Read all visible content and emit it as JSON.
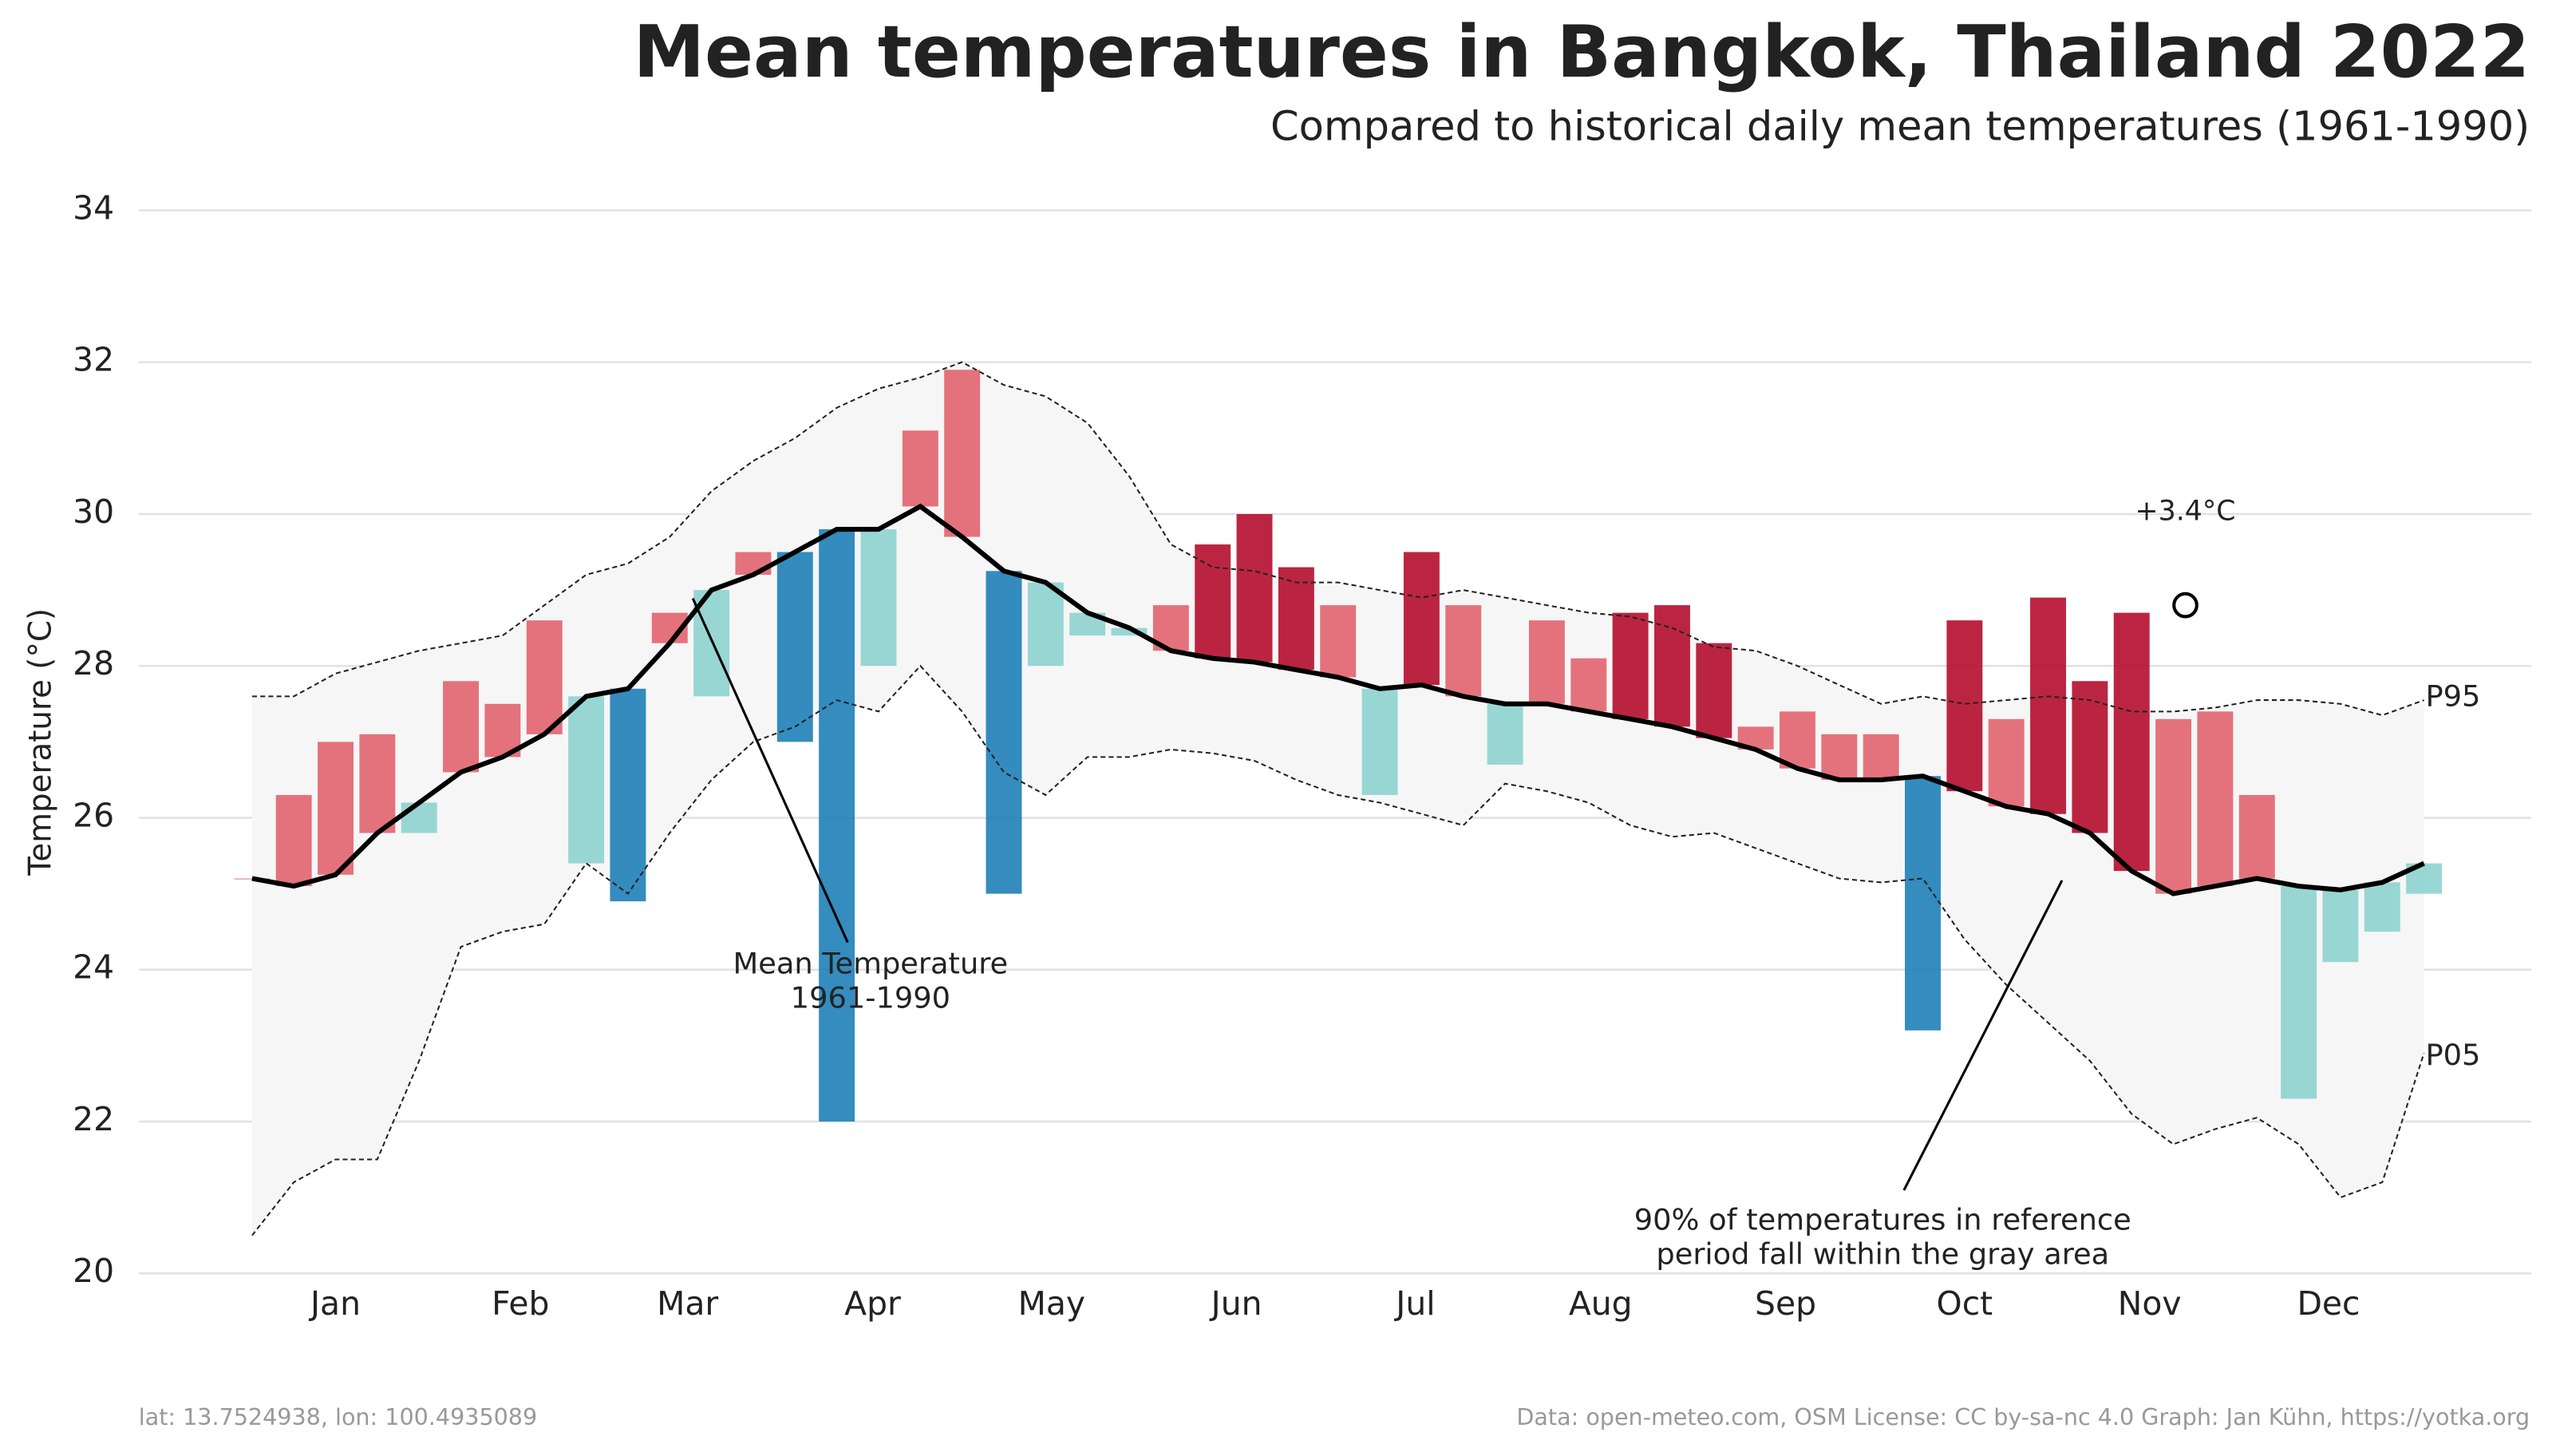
{
  "chart_data": {
    "type": "temperature-band",
    "title": "Mean temperatures in Bangkok, Thailand 2022",
    "subtitle": "Compared to historical daily mean temperatures (1961-1990)",
    "y_label": "Temperature (°C)",
    "footer_left": "lat: 13.7524938, lon: 100.4935089",
    "footer_right": "Data: open-meteo.com, OSM  License: CC by-sa-nc 4.0  Graph: Jan Kühn, https://yotka.org",
    "x": [
      1,
      8,
      15,
      22,
      29,
      36,
      43,
      50,
      57,
      64,
      71,
      78,
      85,
      92,
      99,
      106,
      113,
      120,
      127,
      134,
      141,
      148,
      155,
      162,
      169,
      176,
      183,
      190,
      197,
      204,
      211,
      218,
      225,
      232,
      239,
      246,
      253,
      260,
      267,
      274,
      281,
      288,
      295,
      302,
      309,
      316,
      323,
      330,
      337,
      344,
      351,
      358,
      365
    ],
    "mean": [
      25.2,
      25.1,
      25.25,
      25.8,
      26.2,
      26.6,
      26.8,
      27.1,
      27.6,
      27.7,
      28.3,
      29.0,
      29.2,
      29.5,
      29.8,
      29.8,
      30.1,
      29.7,
      29.25,
      29.1,
      28.7,
      28.5,
      28.2,
      28.1,
      28.05,
      27.95,
      27.85,
      27.7,
      27.75,
      27.6,
      27.5,
      27.5,
      27.4,
      27.3,
      27.2,
      27.05,
      26.9,
      26.65,
      26.5,
      26.5,
      26.55,
      26.35,
      26.15,
      26.05,
      25.8,
      25.3,
      25.0,
      25.1,
      25.2,
      25.1,
      25.05,
      25.15,
      25.4
    ],
    "p95": [
      27.6,
      27.6,
      27.9,
      28.05,
      28.2,
      28.3,
      28.4,
      28.8,
      29.2,
      29.35,
      29.7,
      30.3,
      30.7,
      31.0,
      31.4,
      31.65,
      31.8,
      32.0,
      31.7,
      31.55,
      31.2,
      30.5,
      29.6,
      29.3,
      29.25,
      29.1,
      29.1,
      29.0,
      28.9,
      29.0,
      28.9,
      28.8,
      28.7,
      28.65,
      28.5,
      28.25,
      28.2,
      28.0,
      27.75,
      27.5,
      27.6,
      27.5,
      27.55,
      27.6,
      27.55,
      27.4,
      27.4,
      27.45,
      27.55,
      27.55,
      27.5,
      27.35,
      27.55
    ],
    "p05": [
      20.5,
      21.2,
      21.5,
      21.5,
      22.8,
      24.3,
      24.5,
      24.6,
      25.4,
      25.0,
      25.8,
      26.5,
      27.0,
      27.2,
      27.55,
      27.4,
      28.0,
      27.4,
      26.6,
      26.3,
      26.8,
      26.8,
      26.9,
      26.85,
      26.75,
      26.5,
      26.3,
      26.2,
      26.05,
      25.9,
      26.45,
      26.35,
      26.2,
      25.9,
      25.75,
      25.8,
      25.6,
      25.4,
      25.2,
      25.15,
      25.2,
      24.4,
      23.8,
      23.3,
      22.8,
      22.1,
      21.7,
      21.9,
      22.05,
      21.7,
      21.0,
      21.2,
      22.9
    ],
    "observed": [
      25.2,
      26.3,
      27.0,
      27.1,
      25.8,
      27.8,
      27.5,
      28.6,
      25.4,
      24.9,
      28.7,
      27.6,
      29.5,
      27.0,
      22.0,
      28.0,
      31.1,
      31.9,
      25.0,
      28.0,
      28.4,
      28.4,
      28.8,
      29.6,
      30.0,
      29.3,
      28.8,
      26.3,
      29.5,
      28.8,
      26.7,
      28.6,
      28.1,
      28.7,
      28.8,
      28.3,
      27.2,
      27.4,
      27.1,
      27.1,
      23.2,
      28.6,
      27.3,
      28.9,
      27.8,
      28.7,
      27.3,
      27.4,
      26.3,
      22.3,
      24.1,
      24.5,
      25.0
    ],
    "colors": {
      "band": "#f6f6f6",
      "mean": "#000000",
      "above": "#e2646f",
      "above_extreme": "#b50d2e",
      "below": "#8ed3d0",
      "below_extreme": "#1e7fb8"
    },
    "xlim": [
      -18,
      383
    ],
    "xticks": [
      {
        "value": 15,
        "label": "Jan"
      },
      {
        "value": 46,
        "label": "Feb"
      },
      {
        "value": 74,
        "label": "Mar"
      },
      {
        "value": 105,
        "label": "Apr"
      },
      {
        "value": 135,
        "label": "May"
      },
      {
        "value": 166,
        "label": "Jun"
      },
      {
        "value": 196,
        "label": "Jul"
      },
      {
        "value": 227,
        "label": "Aug"
      },
      {
        "value": 258,
        "label": "Sep"
      },
      {
        "value": 288,
        "label": "Oct"
      },
      {
        "value": 319,
        "label": "Nov"
      },
      {
        "value": 349,
        "label": "Dec"
      }
    ],
    "ylim": [
      20,
      34
    ],
    "yticks": [
      20,
      22,
      24,
      26,
      28,
      30,
      32,
      34
    ],
    "grid": true,
    "highlight": {
      "x": 325,
      "y": 28.8,
      "label": "+3.4°C"
    },
    "band_labels": [
      "P95",
      "P05"
    ],
    "annotations": [
      {
        "text": [
          "Mean Temperature",
          "1961-1990"
        ]
      },
      {
        "text": [
          "90% of temperatures in reference",
          "period fall within the gray area"
        ]
      }
    ]
  }
}
